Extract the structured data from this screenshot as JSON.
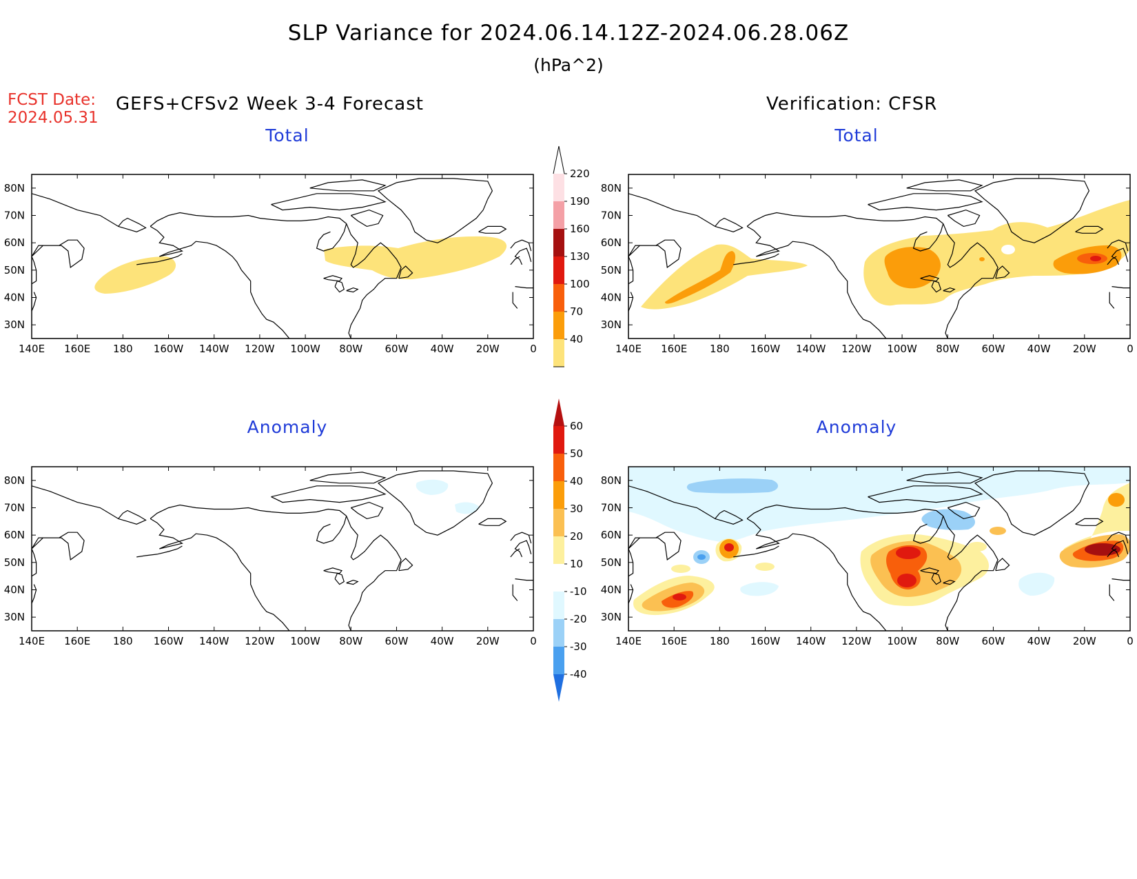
{
  "header": {
    "title": "SLP Variance for 2024.06.14.12Z-2024.06.28.06Z",
    "units": "(hPa^2)",
    "fcst_label": "FCST Date:",
    "fcst_date": "2024.05.31",
    "model": "GEFS+CFSv2 Week 3-4 Forecast",
    "verification": "Verification: CFSR"
  },
  "panels": {
    "top_left_title": "Total",
    "top_right_title": "Total",
    "bottom_left_title": "Anomaly",
    "bottom_right_title": "Anomaly"
  },
  "axes": {
    "lon_labels": [
      "140E",
      "160E",
      "180",
      "160W",
      "140W",
      "120W",
      "100W",
      "80W",
      "60W",
      "40W",
      "20W",
      "0"
    ],
    "lat_labels": [
      "80N",
      "70N",
      "60N",
      "50N",
      "40N",
      "30N"
    ]
  },
  "colorbars": {
    "total": {
      "levels": [
        "220",
        "190",
        "160",
        "130",
        "100",
        "70",
        "40"
      ],
      "colors": [
        "#fde0e4",
        "#f4a0a6",
        "#a51010",
        "#e0190f",
        "#f85f0b",
        "#fb9d0a",
        "#fde37a"
      ]
    },
    "anomaly": {
      "levels": [
        "60",
        "50",
        "40",
        "30",
        "20",
        "10",
        "-10",
        "-20",
        "-30",
        "-40"
      ],
      "colors": [
        "#b51010",
        "#e0190f",
        "#f85f0b",
        "#fb9d0a",
        "#fbc052",
        "#fdf09e",
        "#ffffff",
        "#e0f8ff",
        "#9bd1f7",
        "#4aa0ef",
        "#1f6fe0"
      ]
    }
  },
  "colors": {
    "title_blue": "#1f3bd8",
    "fcst_red": "#e8312a",
    "yellow": "#fde37a",
    "orange": "#fb9d0a",
    "dark_orange": "#f85f0b",
    "red": "#e0190f",
    "dark_red": "#a51010",
    "light_blue": "#e0f8ff",
    "mid_blue": "#9bd1f7",
    "blue": "#4aa0ef"
  }
}
